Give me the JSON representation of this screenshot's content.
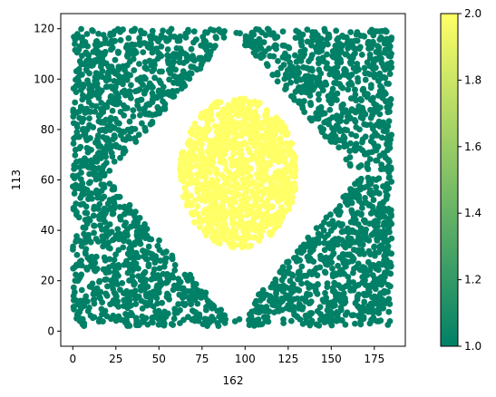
{
  "chart_data": {
    "type": "scatter",
    "xlabel": "162",
    "ylabel": "113",
    "xlim": [
      -7,
      193
    ],
    "ylim": [
      -6,
      126
    ],
    "x_ticks": [
      0,
      25,
      50,
      75,
      100,
      125,
      150,
      175
    ],
    "y_ticks": [
      0,
      20,
      40,
      60,
      80,
      100,
      120
    ],
    "grid": false,
    "colorbar": {
      "cmap": "summer",
      "range": [
        1.0,
        2.0
      ],
      "ticks": [
        1.0,
        1.2,
        1.4,
        1.6,
        1.8,
        2.0
      ],
      "tick_labels": [
        "1.0",
        "1.2",
        "1.4",
        "1.6",
        "1.8",
        "2.0"
      ],
      "low_color": "#008066",
      "high_color": "#ffff66"
    },
    "series": [
      {
        "value": 1.0,
        "color": "#008066",
        "region": "square x 0–185, y 2–120 minus diamond centered (93, 61), half-width 74, half-height 58",
        "count": 2600
      },
      {
        "value": 2.0,
        "color": "#ffff66",
        "region": "ellipse centered (96, 63), radius x 34, radius y 30",
        "count": 1000
      }
    ]
  }
}
